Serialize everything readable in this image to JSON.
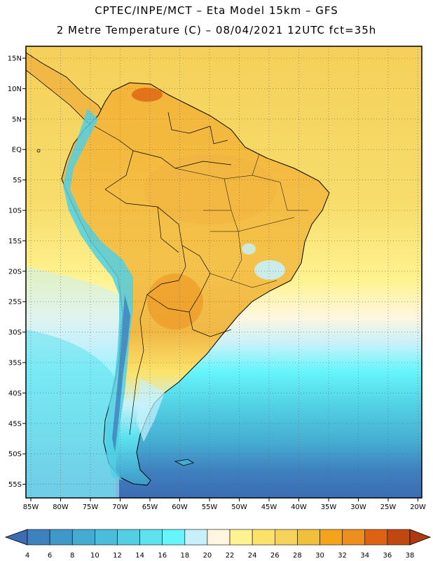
{
  "header": {
    "line1": "CPTEC/INPE/MCT –  Eta Model 15km – GFS",
    "line2": "2 Metre Temperature (C) – 08/04/2021 12UTC fct=35h"
  },
  "map": {
    "lat_labels": [
      "15N",
      "10N",
      "5N",
      "EQ",
      "5S",
      "10S",
      "15S",
      "20S",
      "25S",
      "30S",
      "35S",
      "40S",
      "45S",
      "50S",
      "55S"
    ],
    "lon_labels": [
      "85W",
      "80W",
      "75W",
      "70W",
      "65W",
      "60W",
      "55W",
      "50W",
      "45W",
      "40W",
      "35W",
      "30W",
      "25W",
      "20W"
    ],
    "region": "South America",
    "grid": "dotted"
  },
  "colorbar": {
    "labels": [
      "4",
      "6",
      "8",
      "10",
      "12",
      "14",
      "16",
      "18",
      "20",
      "22",
      "24",
      "26",
      "28",
      "30",
      "32",
      "34",
      "36",
      "38"
    ],
    "colors": [
      "#3b6db3",
      "#3f80bf",
      "#3f98c8",
      "#45abd1",
      "#4bbcd9",
      "#52cfe3",
      "#5de2ee",
      "#66f5fb",
      "#c6f1fb",
      "#fff6e0",
      "#fff391",
      "#fbe36b",
      "#f5d259",
      "#f1c03b",
      "#f3a41a",
      "#ec8f1d",
      "#dd6312",
      "#c14711",
      "#b03a0f"
    ]
  },
  "colors": {
    "frame": "#000000",
    "land_outline": "#000000"
  }
}
